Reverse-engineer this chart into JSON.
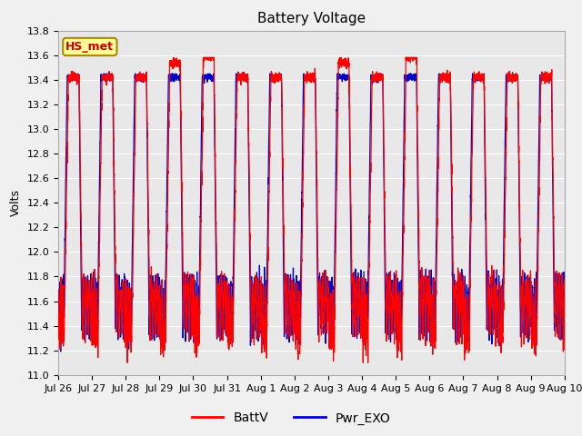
{
  "title": "Battery Voltage",
  "ylabel": "Volts",
  "ylim": [
    11.0,
    13.8
  ],
  "yticks": [
    11.0,
    11.2,
    11.4,
    11.6,
    11.8,
    12.0,
    12.2,
    12.4,
    12.6,
    12.8,
    13.0,
    13.2,
    13.4,
    13.6,
    13.8
  ],
  "xlabels": [
    "Jul 26",
    "Jul 27",
    "Jul 28",
    "Jul 29",
    "Jul 30",
    "Jul 31",
    "Aug 1",
    "Aug 2",
    "Aug 3",
    "Aug 4",
    "Aug 5",
    "Aug 6",
    "Aug 7",
    "Aug 8",
    "Aug 9",
    "Aug 10"
  ],
  "line1_color": "#ff0000",
  "line2_color": "#0000cc",
  "line1_label": "BattV",
  "line2_label": "Pwr_EXO",
  "station_label": "HS_met",
  "fig_bg_color": "#f0f0f0",
  "plot_bg_color": "#e8e8e8",
  "grid_color": "#ffffff",
  "title_fontsize": 11,
  "axis_fontsize": 9,
  "tick_fontsize": 8,
  "legend_fontsize": 10,
  "n_days": 15,
  "samples_per_day": 288
}
